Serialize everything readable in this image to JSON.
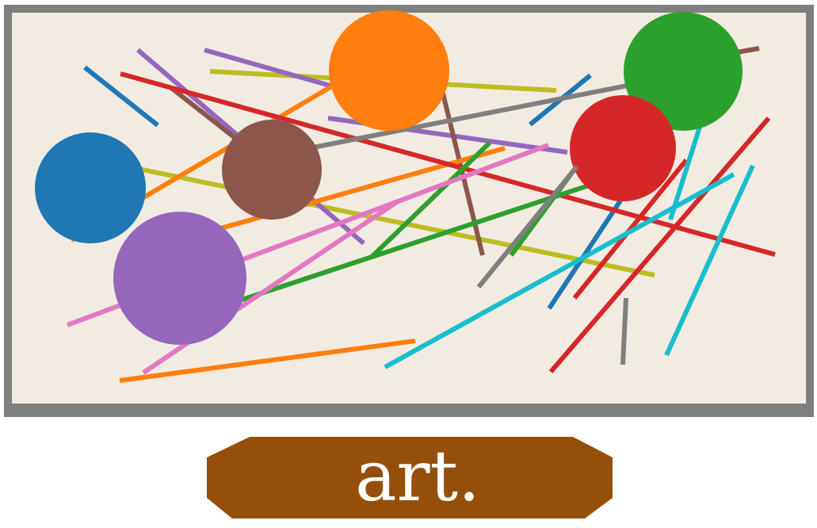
{
  "colors": {
    "frame": "#7f7f7f",
    "canvas": "#f2ebe1",
    "caption_plate": "#964f0a",
    "caption_text": "#ffffff",
    "blue": "#1f77b4",
    "orange": "#ff7f0e",
    "green": "#2ca02c",
    "red": "#d62728",
    "purple": "#9467bd",
    "brown": "#8c564b",
    "pink": "#e377c2",
    "gray": "#7f7f7f",
    "olive": "#bcbd22",
    "cyan": "#17becf"
  },
  "caption": {
    "text": "art."
  }
}
